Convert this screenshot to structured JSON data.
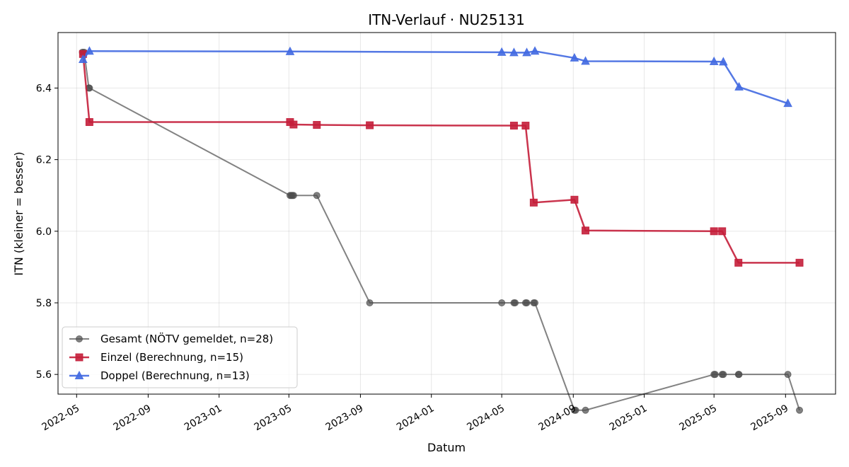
{
  "chart_data": {
    "type": "line",
    "title": "ITN-Verlauf · NU25131",
    "xlabel": "Datum",
    "ylabel": "ITN  (kleiner = besser)",
    "xlim": [
      "2022-03-30",
      "2025-11-26"
    ],
    "ylim": [
      5.545,
      6.555
    ],
    "grid": true,
    "legend_position": "bottom-left",
    "x_ticks": [
      "2022-05",
      "2022-09",
      "2023-01",
      "2023-05",
      "2023-09",
      "2024-01",
      "2024-05",
      "2024-09",
      "2025-01",
      "2025-05",
      "2025-09"
    ],
    "y_ticks": [
      "5.6",
      "5.8",
      "6.0",
      "6.2",
      "6.4"
    ],
    "series": [
      {
        "name": "Gesamt (NÖTV gemeldet, n=28)",
        "color": "#4d4d4d",
        "marker": "circle",
        "points": [
          [
            "2022-05-11",
            6.5
          ],
          [
            "2022-05-14",
            6.5
          ],
          [
            "2022-05-22",
            6.4
          ],
          [
            "2022-05-23",
            6.4
          ],
          [
            "2023-05-03",
            6.1
          ],
          [
            "2023-05-05",
            6.1
          ],
          [
            "2023-05-07",
            6.1
          ],
          [
            "2023-05-09",
            6.1
          ],
          [
            "2023-06-18",
            6.1
          ],
          [
            "2023-09-17",
            5.8
          ],
          [
            "2024-05-01",
            5.8
          ],
          [
            "2024-05-22",
            5.8
          ],
          [
            "2024-05-24",
            5.8
          ],
          [
            "2024-06-11",
            5.8
          ],
          [
            "2024-06-13",
            5.8
          ],
          [
            "2024-06-25",
            5.8
          ],
          [
            "2024-06-27",
            5.8
          ],
          [
            "2024-09-03",
            5.5
          ],
          [
            "2024-09-05",
            5.5
          ],
          [
            "2024-09-22",
            5.5
          ],
          [
            "2025-05-01",
            5.6
          ],
          [
            "2025-05-03",
            5.6
          ],
          [
            "2025-05-15",
            5.6
          ],
          [
            "2025-05-17",
            5.6
          ],
          [
            "2025-06-12",
            5.6
          ],
          [
            "2025-06-13",
            5.6
          ],
          [
            "2025-09-05",
            5.6
          ],
          [
            "2025-09-25",
            5.5
          ]
        ]
      },
      {
        "name": "Einzel (Berechnung, n=15)",
        "color": "#c41e3a",
        "marker": "square",
        "points": [
          [
            "2022-05-12",
            6.495
          ],
          [
            "2022-05-23",
            6.305
          ],
          [
            "2023-05-03",
            6.305
          ],
          [
            "2023-05-09",
            6.298
          ],
          [
            "2023-06-18",
            6.297
          ],
          [
            "2023-09-17",
            6.296
          ],
          [
            "2024-05-22",
            6.295
          ],
          [
            "2024-06-11",
            6.295
          ],
          [
            "2024-06-25",
            6.08
          ],
          [
            "2024-09-03",
            6.088
          ],
          [
            "2024-09-22",
            6.002
          ],
          [
            "2025-05-01",
            6.0
          ],
          [
            "2025-05-15",
            6.0
          ],
          [
            "2025-06-12",
            5.912
          ],
          [
            "2025-09-25",
            5.912
          ]
        ]
      },
      {
        "name": "Doppel (Berechnung, n=13)",
        "color": "#4169e1",
        "marker": "triangle",
        "points": [
          [
            "2022-05-12",
            6.48
          ],
          [
            "2022-05-23",
            6.503
          ],
          [
            "2023-05-03",
            6.502
          ],
          [
            "2024-05-01",
            6.5
          ],
          [
            "2024-05-22",
            6.499
          ],
          [
            "2024-06-13",
            6.499
          ],
          [
            "2024-06-27",
            6.503
          ],
          [
            "2024-09-03",
            6.484
          ],
          [
            "2024-09-22",
            6.475
          ],
          [
            "2025-05-01",
            6.474
          ],
          [
            "2025-05-17",
            6.473
          ],
          [
            "2025-06-13",
            6.403
          ],
          [
            "2025-09-05",
            6.357
          ]
        ]
      }
    ]
  }
}
